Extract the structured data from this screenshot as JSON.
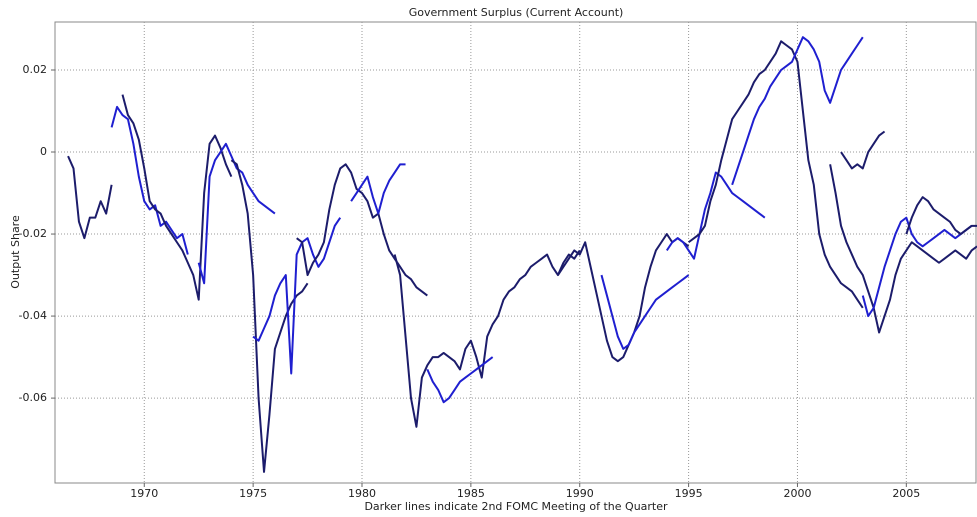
{
  "chart_data": {
    "type": "line",
    "title": "Government Surplus (Current Account)",
    "xlabel": "Darker lines indicate 2nd FOMC Meeting of the Quarter",
    "ylabel": "Output Share",
    "xlim": [
      1965.9,
      2008.2
    ],
    "ylim": [
      -0.0807,
      0.0317
    ],
    "xticks": [
      1970,
      1975,
      1980,
      1985,
      1990,
      1995,
      2000,
      2005
    ],
    "yticks": [
      0.02,
      0,
      -0.02,
      -0.04,
      -0.06
    ],
    "grid": true,
    "series": [
      {
        "color": "#1c1c6b",
        "x": [
          1966.5,
          1966.75,
          1967,
          1967.25,
          1967.5,
          1967.75,
          1968,
          1968.25,
          1968.5
        ],
        "values": [
          -0.001,
          -0.004,
          -0.017,
          -0.021,
          -0.016,
          -0.016,
          -0.012,
          -0.015,
          -0.008
        ]
      },
      {
        "color": "#1f1fd0",
        "x": [
          1968.5,
          1968.75,
          1969,
          1969.25,
          1969.5,
          1969.75,
          1970,
          1970.25,
          1970.5,
          1970.75,
          1971,
          1971.25,
          1971.5,
          1971.75,
          1972
        ],
        "values": [
          0.006,
          0.011,
          0.009,
          0.008,
          0.002,
          -0.006,
          -0.012,
          -0.014,
          -0.013,
          -0.018,
          -0.017,
          -0.019,
          -0.021,
          -0.02,
          -0.025
        ]
      },
      {
        "color": "#1c1c6b",
        "x": [
          1969,
          1969.25,
          1969.5,
          1969.75,
          1970,
          1970.25,
          1970.5,
          1970.75,
          1971,
          1971.25,
          1971.5,
          1971.75,
          1972,
          1972.25,
          1972.5,
          1972.75,
          1973,
          1973.25,
          1973.5,
          1973.75,
          1974
        ],
        "values": [
          0.014,
          0.009,
          0.007,
          0.003,
          -0.004,
          -0.012,
          -0.014,
          -0.015,
          -0.018,
          -0.02,
          -0.022,
          -0.024,
          -0.027,
          -0.03,
          -0.036,
          -0.01,
          0.002,
          0.004,
          0.001,
          -0.003,
          -0.006
        ]
      },
      {
        "color": "#1f1fd0",
        "x": [
          1972.5,
          1972.75,
          1973,
          1973.25,
          1973.5,
          1973.75,
          1974,
          1974.25,
          1974.5,
          1974.75,
          1975,
          1975.25,
          1975.5,
          1975.75,
          1976
        ],
        "values": [
          -0.027,
          -0.032,
          -0.006,
          -0.002,
          0,
          0.002,
          -0.001,
          -0.004,
          -0.005,
          -0.008,
          -0.01,
          -0.012,
          -0.013,
          -0.014,
          -0.015
        ]
      },
      {
        "color": "#1c1c6b",
        "x": [
          1974,
          1974.25,
          1974.5,
          1974.75,
          1975,
          1975.25,
          1975.5,
          1975.75,
          1976,
          1976.25,
          1976.5,
          1976.75,
          1977,
          1977.25,
          1977.5
        ],
        "values": [
          -0.002,
          -0.003,
          -0.008,
          -0.015,
          -0.03,
          -0.06,
          -0.078,
          -0.064,
          -0.048,
          -0.044,
          -0.04,
          -0.037,
          -0.035,
          -0.034,
          -0.032
        ]
      },
      {
        "color": "#1f1fd0",
        "x": [
          1975,
          1975.25,
          1975.5,
          1975.75,
          1976,
          1976.25,
          1976.5,
          1976.75,
          1977,
          1977.25,
          1977.5,
          1977.75,
          1978,
          1978.25,
          1978.5,
          1978.75,
          1979
        ],
        "values": [
          -0.045,
          -0.046,
          -0.043,
          -0.04,
          -0.035,
          -0.032,
          -0.03,
          -0.054,
          -0.025,
          -0.022,
          -0.021,
          -0.025,
          -0.028,
          -0.026,
          -0.022,
          -0.018,
          -0.016
        ]
      },
      {
        "color": "#1c1c6b",
        "x": [
          1977,
          1977.25,
          1977.5,
          1977.75,
          1978,
          1978.25,
          1978.5,
          1978.75,
          1979,
          1979.25,
          1979.5,
          1979.75,
          1980,
          1980.25,
          1980.5,
          1980.75,
          1981,
          1981.25,
          1981.5,
          1981.75,
          1982,
          1982.25,
          1982.5,
          1982.75,
          1983
        ],
        "values": [
          -0.021,
          -0.022,
          -0.03,
          -0.027,
          -0.025,
          -0.022,
          -0.014,
          -0.008,
          -0.004,
          -0.003,
          -0.005,
          -0.009,
          -0.01,
          -0.012,
          -0.016,
          -0.015,
          -0.02,
          -0.024,
          -0.026,
          -0.028,
          -0.03,
          -0.031,
          -0.033,
          -0.034,
          -0.035
        ]
      },
      {
        "color": "#1f1fd0",
        "x": [
          1979.5,
          1979.75,
          1980,
          1980.25,
          1980.5,
          1980.75,
          1981,
          1981.25,
          1981.5,
          1981.75,
          1982
        ],
        "values": [
          -0.012,
          -0.01,
          -0.008,
          -0.006,
          -0.011,
          -0.015,
          -0.01,
          -0.007,
          -0.005,
          -0.003,
          -0.003
        ]
      },
      {
        "color": "#1c1c6b",
        "x": [
          1981.5,
          1981.75,
          1982,
          1982.25,
          1982.5,
          1982.75,
          1983,
          1983.25,
          1983.5,
          1983.75,
          1984,
          1984.25,
          1984.5,
          1984.75,
          1985,
          1985.25,
          1985.5,
          1985.75,
          1986,
          1986.25,
          1986.5,
          1986.75,
          1987,
          1987.25,
          1987.5,
          1987.75,
          1988,
          1988.25,
          1988.5,
          1988.75,
          1989,
          1989.25,
          1989.5,
          1989.75,
          1990
        ],
        "values": [
          -0.025,
          -0.03,
          -0.045,
          -0.06,
          -0.067,
          -0.055,
          -0.052,
          -0.05,
          -0.05,
          -0.049,
          -0.05,
          -0.051,
          -0.053,
          -0.048,
          -0.046,
          -0.05,
          -0.055,
          -0.045,
          -0.042,
          -0.04,
          -0.036,
          -0.034,
          -0.033,
          -0.031,
          -0.03,
          -0.028,
          -0.027,
          -0.026,
          -0.025,
          -0.028,
          -0.03,
          -0.027,
          -0.025,
          -0.026,
          -0.024
        ]
      },
      {
        "color": "#1f1fd0",
        "x": [
          1983,
          1983.25,
          1983.5,
          1983.75,
          1984,
          1984.25,
          1984.5,
          1984.75,
          1985,
          1985.25,
          1985.5,
          1985.75,
          1986
        ],
        "values": [
          -0.053,
          -0.056,
          -0.058,
          -0.061,
          -0.06,
          -0.058,
          -0.056,
          -0.055,
          -0.054,
          -0.053,
          -0.052,
          -0.051,
          -0.05
        ]
      },
      {
        "color": "#1c1c6b",
        "x": [
          1989,
          1989.25,
          1989.5,
          1989.75,
          1990,
          1990.25,
          1990.5,
          1990.75,
          1991,
          1991.25,
          1991.5,
          1991.75,
          1992,
          1992.25,
          1992.5,
          1992.75,
          1993,
          1993.25,
          1993.5,
          1993.75,
          1994,
          1994.25,
          1994.5,
          1994.75,
          1995
        ],
        "values": [
          -0.03,
          -0.028,
          -0.026,
          -0.024,
          -0.025,
          -0.022,
          -0.028,
          -0.034,
          -0.04,
          -0.046,
          -0.05,
          -0.051,
          -0.05,
          -0.047,
          -0.044,
          -0.04,
          -0.033,
          -0.028,
          -0.024,
          -0.022,
          -0.02,
          -0.022,
          -0.021,
          -0.022,
          -0.023
        ]
      },
      {
        "color": "#1f1fd0",
        "x": [
          1991,
          1991.25,
          1991.5,
          1991.75,
          1992,
          1992.25,
          1992.5,
          1992.75,
          1993,
          1993.25,
          1993.5,
          1993.75,
          1994,
          1994.25,
          1994.5,
          1994.75,
          1995
        ],
        "values": [
          -0.03,
          -0.035,
          -0.04,
          -0.045,
          -0.048,
          -0.047,
          -0.044,
          -0.042,
          -0.04,
          -0.038,
          -0.036,
          -0.035,
          -0.034,
          -0.033,
          -0.032,
          -0.031,
          -0.03
        ]
      },
      {
        "color": "#1f1fd0",
        "x": [
          1994,
          1994.25,
          1994.5,
          1994.75,
          1995,
          1995.25,
          1995.5,
          1995.75,
          1996,
          1996.25,
          1996.5,
          1996.75,
          1997,
          1997.25,
          1997.5,
          1997.75,
          1998,
          1998.25,
          1998.5
        ],
        "values": [
          -0.024,
          -0.022,
          -0.021,
          -0.022,
          -0.024,
          -0.026,
          -0.02,
          -0.014,
          -0.01,
          -0.005,
          -0.006,
          -0.008,
          -0.01,
          -0.011,
          -0.012,
          -0.013,
          -0.014,
          -0.015,
          -0.016
        ]
      },
      {
        "color": "#1c1c6b",
        "x": [
          1995,
          1995.25,
          1995.5,
          1995.75,
          1996,
          1996.25,
          1996.5,
          1996.75,
          1997,
          1997.25,
          1997.5,
          1997.75,
          1998,
          1998.25,
          1998.5,
          1998.75,
          1999,
          1999.25,
          1999.5,
          1999.75,
          2000,
          2000.25,
          2000.5,
          2000.75,
          2001,
          2001.25,
          2001.5,
          2001.75,
          2002,
          2002.25,
          2002.5,
          2002.75,
          2003
        ],
        "values": [
          -0.022,
          -0.021,
          -0.02,
          -0.018,
          -0.012,
          -0.008,
          -0.002,
          0.003,
          0.008,
          0.01,
          0.012,
          0.014,
          0.017,
          0.019,
          0.02,
          0.022,
          0.024,
          0.027,
          0.026,
          0.025,
          0.022,
          0.01,
          -0.002,
          -0.008,
          -0.02,
          -0.025,
          -0.028,
          -0.03,
          -0.032,
          -0.033,
          -0.034,
          -0.036,
          -0.038
        ]
      },
      {
        "color": "#1f1fd0",
        "x": [
          1997,
          1997.25,
          1997.5,
          1997.75,
          1998,
          1998.25,
          1998.5,
          1998.75,
          1999,
          1999.25,
          1999.5,
          1999.75,
          2000,
          2000.25,
          2000.5,
          2000.75,
          2001,
          2001.25,
          2001.5,
          2001.75,
          2002,
          2002.25,
          2002.5,
          2002.75,
          2003
        ],
        "values": [
          -0.008,
          -0.004,
          0,
          0.004,
          0.008,
          0.011,
          0.013,
          0.016,
          0.018,
          0.02,
          0.021,
          0.022,
          0.025,
          0.028,
          0.027,
          0.025,
          0.022,
          0.015,
          0.012,
          0.016,
          0.02,
          0.022,
          0.024,
          0.026,
          0.028
        ]
      },
      {
        "color": "#1c1c6b",
        "x": [
          2001.5,
          2001.75,
          2002,
          2002.25,
          2002.5,
          2002.75,
          2003,
          2003.25,
          2003.5,
          2003.75,
          2004,
          2004.25,
          2004.5,
          2004.75,
          2005,
          2005.25,
          2005.5,
          2005.75,
          2006,
          2006.25,
          2006.5,
          2006.75,
          2007,
          2007.25,
          2007.5,
          2007.75,
          2008,
          2008.25
        ],
        "values": [
          -0.003,
          -0.01,
          -0.018,
          -0.022,
          -0.025,
          -0.028,
          -0.03,
          -0.034,
          -0.038,
          -0.044,
          -0.04,
          -0.036,
          -0.03,
          -0.026,
          -0.024,
          -0.022,
          -0.023,
          -0.024,
          -0.025,
          -0.026,
          -0.027,
          -0.026,
          -0.025,
          -0.024,
          -0.025,
          -0.026,
          -0.024,
          -0.023
        ]
      },
      {
        "color": "#1f1fd0",
        "x": [
          2003,
          2003.25,
          2003.5,
          2003.75,
          2004,
          2004.25,
          2004.5,
          2004.75,
          2005,
          2005.25,
          2005.5,
          2005.75,
          2006,
          2006.25,
          2006.5,
          2006.75,
          2007,
          2007.25,
          2007.5,
          2007.75,
          2008
        ],
        "values": [
          -0.035,
          -0.04,
          -0.038,
          -0.033,
          -0.028,
          -0.024,
          -0.02,
          -0.017,
          -0.016,
          -0.02,
          -0.022,
          -0.023,
          -0.022,
          -0.021,
          -0.02,
          -0.019,
          -0.02,
          -0.021,
          -0.02,
          -0.019,
          -0.018
        ]
      },
      {
        "color": "#1c1c6b",
        "x": [
          2005,
          2005.25,
          2005.5,
          2005.75,
          2006,
          2006.25,
          2006.5,
          2006.75,
          2007,
          2007.25,
          2007.5,
          2007.75,
          2008,
          2008.25
        ],
        "values": [
          -0.02,
          -0.016,
          -0.013,
          -0.011,
          -0.012,
          -0.014,
          -0.015,
          -0.016,
          -0.017,
          -0.019,
          -0.02,
          -0.019,
          -0.018,
          -0.018
        ]
      },
      {
        "color": "#1c1c6b",
        "x": [
          2002,
          2002.25,
          2002.5,
          2002.75,
          2003,
          2003.25,
          2003.5,
          2003.75,
          2004
        ],
        "values": [
          0,
          -0.002,
          -0.004,
          -0.003,
          -0.004,
          0,
          0.002,
          0.004,
          0.005
        ]
      }
    ]
  }
}
